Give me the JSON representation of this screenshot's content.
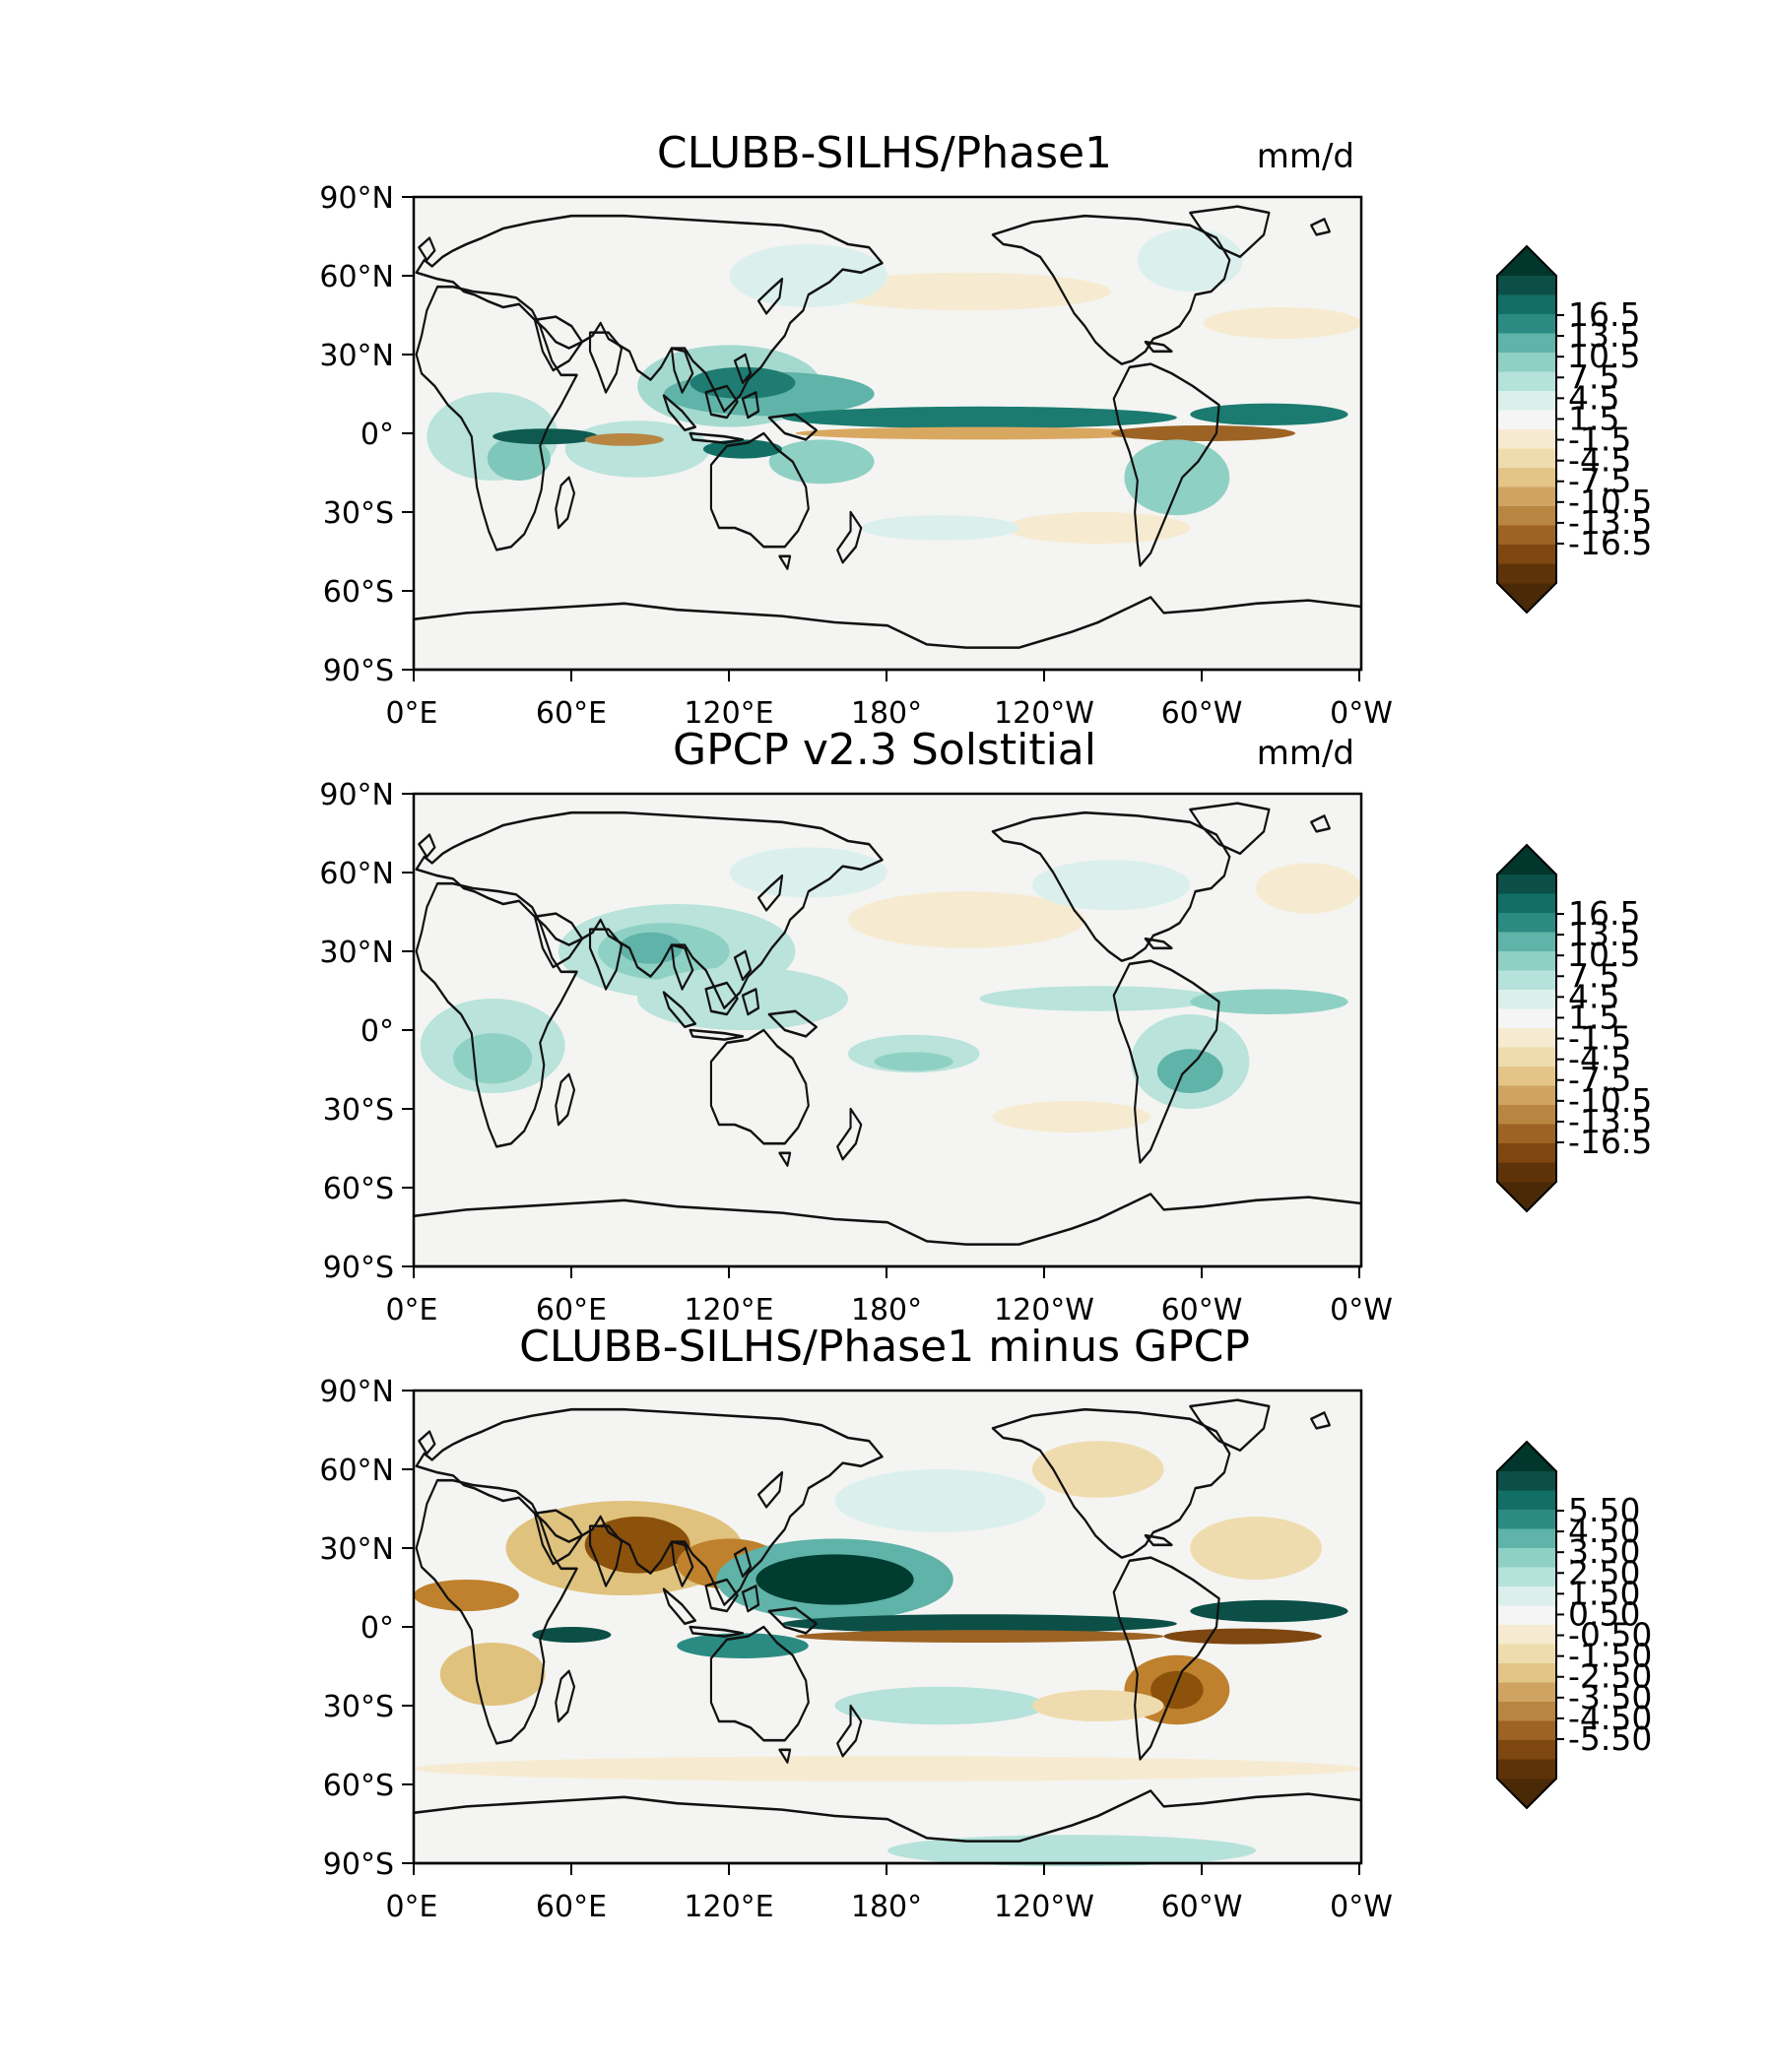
{
  "figure": {
    "description_units": "mm/d",
    "panels": [
      {
        "title": "CLUBB-SILHS/Phase1",
        "units": "mm/d",
        "lat_ticks": [
          "90°N",
          "60°N",
          "30°N",
          "0°",
          "30°S",
          "60°S",
          "90°S"
        ],
        "lon_ticks": [
          "0°E",
          "60°E",
          "120°E",
          "180°",
          "120°W",
          "60°W",
          "0°W"
        ],
        "colorbar_ticks": [
          "16.5",
          "13.5",
          "10.5",
          "7.5",
          "4.5",
          "1.5",
          "-1.5",
          "-4.5",
          "-7.5",
          "-10.5",
          "-13.5",
          "-16.5"
        ]
      },
      {
        "title": "GPCP v2.3 Solstitial",
        "units": "mm/d",
        "lat_ticks": [
          "90°N",
          "60°N",
          "30°N",
          "0°",
          "30°S",
          "60°S",
          "90°S"
        ],
        "lon_ticks": [
          "0°E",
          "60°E",
          "120°E",
          "180°",
          "120°W",
          "60°W",
          "0°W"
        ],
        "colorbar_ticks": [
          "16.5",
          "13.5",
          "10.5",
          "7.5",
          "4.5",
          "1.5",
          "-1.5",
          "-4.5",
          "-7.5",
          "-10.5",
          "-13.5",
          "-16.5"
        ]
      },
      {
        "title": "CLUBB-SILHS/Phase1 minus GPCP",
        "units": "",
        "lat_ticks": [
          "90°N",
          "60°N",
          "30°N",
          "0°",
          "30°S",
          "60°S",
          "90°S"
        ],
        "lon_ticks": [
          "0°E",
          "60°E",
          "120°E",
          "180°",
          "120°W",
          "60°W",
          "0°W"
        ],
        "colorbar_ticks": [
          "5.50",
          "4.50",
          "3.50",
          "2.50",
          "1.50",
          "0.50",
          "-0.50",
          "-1.50",
          "-2.50",
          "-3.50",
          "-4.50",
          "-5.50"
        ]
      }
    ],
    "colormap": [
      "#003c30",
      "#01665e",
      "#35978f",
      "#80cdc1",
      "#c7eae5",
      "#f5f5f5",
      "#f6e8c3",
      "#dfc27d",
      "#bf812d",
      "#8c510a",
      "#543005"
    ],
    "colorbar_colors": [
      "#0b4f46",
      "#126f65",
      "#2b8b82",
      "#5fb3a8",
      "#8fd0c4",
      "#b5e2da",
      "#dbf0ec",
      "#f5f5f5",
      "#f6ebd0",
      "#efdcae",
      "#e2c587",
      "#cfa462",
      "#b98642",
      "#9d6324",
      "#7e4711",
      "#5e3309"
    ]
  }
}
